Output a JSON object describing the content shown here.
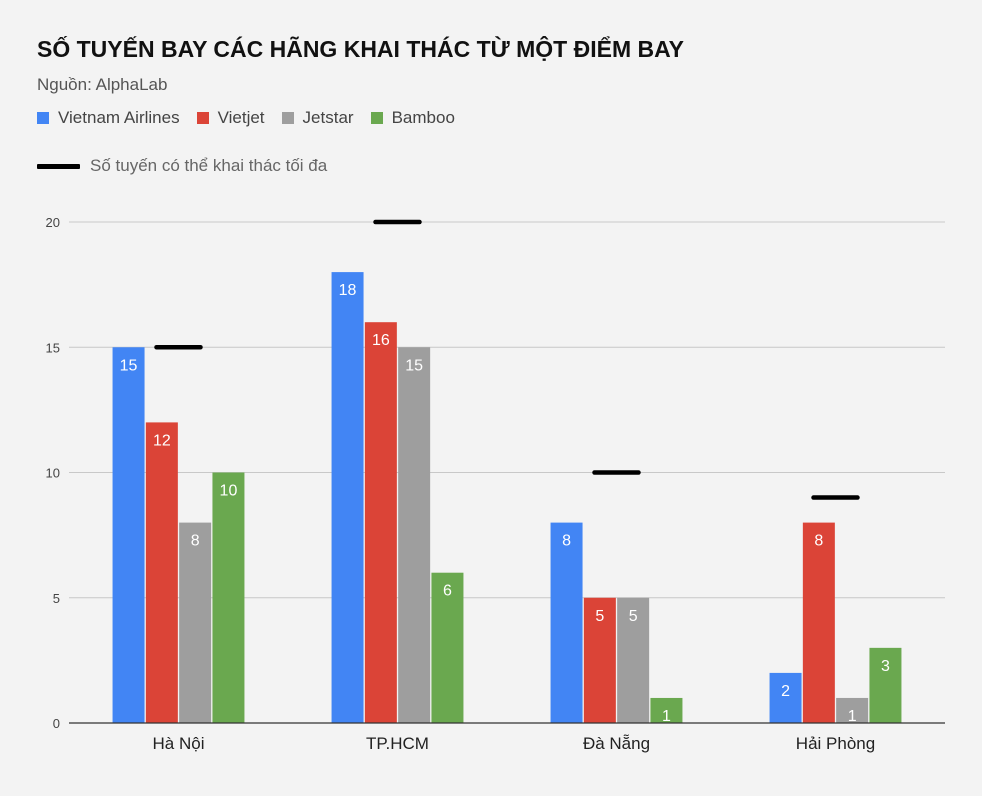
{
  "chart_data": {
    "type": "bar",
    "title": "SỐ TUYẾN BAY CÁC HÃNG KHAI THÁC TỪ MỘT ĐIỂM BAY",
    "subtitle": "Nguồn: AlphaLab",
    "categories": [
      "Hà Nội",
      "TP.HCM",
      "Đà Nẵng",
      "Hải Phòng"
    ],
    "series": [
      {
        "name": "Vietnam Airlines",
        "color": "#4285f4",
        "values": [
          15,
          18,
          8,
          2
        ]
      },
      {
        "name": "Vietjet",
        "color": "#db4437",
        "values": [
          12,
          16,
          5,
          8
        ]
      },
      {
        "name": "Jetstar",
        "color": "#9e9e9e",
        "values": [
          8,
          15,
          5,
          1
        ]
      },
      {
        "name": "Bamboo",
        "color": "#6aa84f",
        "values": [
          10,
          6,
          1,
          3
        ]
      }
    ],
    "max_line": {
      "name": "Số tuyến có thể khai thác tối đa",
      "color": "#000000",
      "values": [
        15,
        20,
        10,
        9
      ]
    },
    "yticks": [
      0,
      5,
      10,
      15,
      20
    ],
    "ylim": [
      0,
      20
    ],
    "grid": true,
    "legend": "top-left"
  }
}
